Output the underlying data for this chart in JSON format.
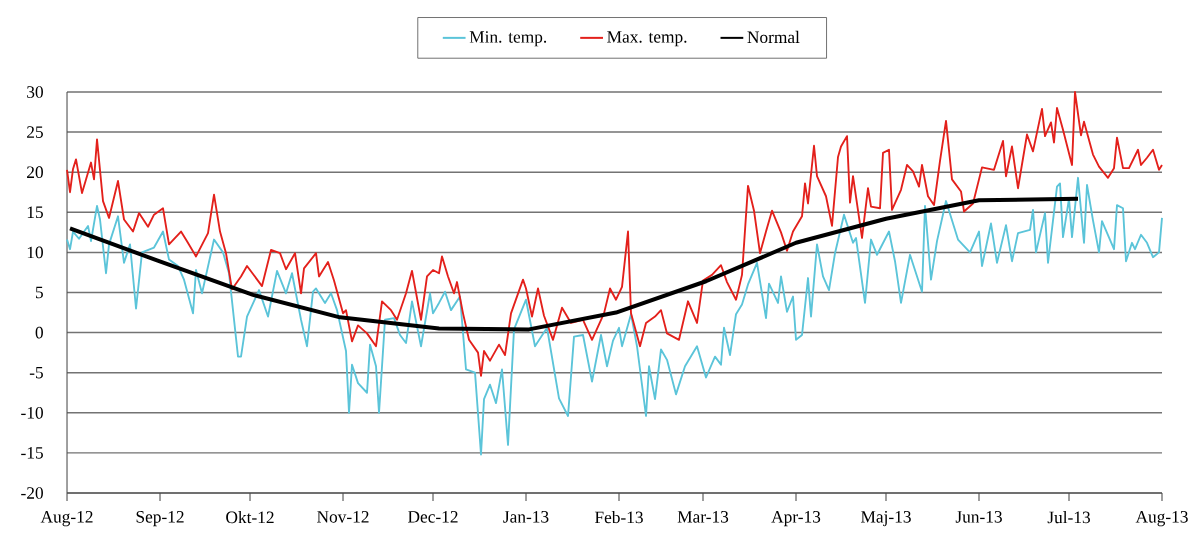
{
  "chart_data": {
    "type": "line",
    "xlim": [
      "2012-08-01",
      "2013-08-01"
    ],
    "xticks": [
      {
        "value": "2012-08-01",
        "label": "Aug-12"
      },
      {
        "value": "2012-09-01",
        "label": "Sep-12"
      },
      {
        "value": "2012-10-01",
        "label": "Okt-12"
      },
      {
        "value": "2012-11-01",
        "label": "Nov-12"
      },
      {
        "value": "2012-12-01",
        "label": "Dec-12"
      },
      {
        "value": "2013-01-01",
        "label": "Jan-13"
      },
      {
        "value": "2013-02-01",
        "label": "Feb-13"
      },
      {
        "value": "2013-03-01",
        "label": "Mar-13"
      },
      {
        "value": "2013-04-01",
        "label": "Apr-13"
      },
      {
        "value": "2013-05-01",
        "label": "Maj-13"
      },
      {
        "value": "2013-06-01",
        "label": "Jun-13"
      },
      {
        "value": "2013-07-01",
        "label": "Jul-13"
      },
      {
        "value": "2013-08-01",
        "label": "Aug-13"
      }
    ],
    "ylim": [
      -20,
      30
    ],
    "yticks": [
      -20,
      -15,
      -10,
      -5,
      0,
      5,
      10,
      15,
      20,
      25,
      30
    ],
    "grid": "y",
    "legend": "top",
    "series": [
      {
        "name": "Min. temp.",
        "color": "#5bc4d9",
        "x": [
          "2012-08-01",
          "2012-08-02",
          "2012-08-03",
          "2012-08-05",
          "2012-08-08",
          "2012-08-09",
          "2012-08-11",
          "2012-08-12",
          "2012-08-14",
          "2012-08-15",
          "2012-08-18",
          "2012-08-20",
          "2012-08-22",
          "2012-08-24",
          "2012-08-26",
          "2012-08-30",
          "2012-09-02",
          "2012-09-04",
          "2012-09-07",
          "2012-09-09",
          "2012-09-12",
          "2012-09-13",
          "2012-09-15",
          "2012-09-19",
          "2012-09-22",
          "2012-09-24",
          "2012-09-27",
          "2012-09-28",
          "2012-09-30",
          "2012-10-04",
          "2012-10-07",
          "2012-10-10",
          "2012-10-13",
          "2012-10-15",
          "2012-10-18",
          "2012-10-20",
          "2012-10-22",
          "2012-10-23",
          "2012-10-26",
          "2012-10-28",
          "2012-10-30",
          "2012-11-02",
          "2012-11-03",
          "2012-11-04",
          "2012-11-06",
          "2012-11-09",
          "2012-11-10",
          "2012-11-12",
          "2012-11-13",
          "2012-11-15",
          "2012-11-18",
          "2012-11-20",
          "2012-11-22",
          "2012-11-24",
          "2012-11-27",
          "2012-11-30",
          "2012-12-01",
          "2012-12-03",
          "2012-12-05",
          "2012-12-07",
          "2012-12-10",
          "2012-12-12",
          "2012-12-15",
          "2012-12-17",
          "2012-12-18",
          "2012-12-20",
          "2012-12-22",
          "2012-12-24",
          "2012-12-26",
          "2012-12-28",
          "2013-01-01",
          "2013-01-04",
          "2013-01-08",
          "2013-01-12",
          "2013-01-15",
          "2013-01-17",
          "2013-01-20",
          "2013-01-23",
          "2013-01-26",
          "2013-01-28",
          "2013-01-30",
          "2013-02-01",
          "2013-02-02",
          "2013-02-05",
          "2013-02-07",
          "2013-02-10",
          "2013-02-11",
          "2013-02-13",
          "2013-02-15",
          "2013-02-17",
          "2013-02-20",
          "2013-02-23",
          "2013-02-27",
          "2013-03-02",
          "2013-03-05",
          "2013-03-07",
          "2013-03-08",
          "2013-03-10",
          "2013-03-12",
          "2013-03-14",
          "2013-03-16",
          "2013-03-19",
          "2013-03-22",
          "2013-03-23",
          "2013-03-26",
          "2013-03-27",
          "2013-03-29",
          "2013-03-31",
          "2013-04-01",
          "2013-04-03",
          "2013-04-05",
          "2013-04-06",
          "2013-04-08",
          "2013-04-10",
          "2013-04-12",
          "2013-04-14",
          "2013-04-17",
          "2013-04-20",
          "2013-04-21",
          "2013-04-24",
          "2013-04-26",
          "2013-04-28",
          "2013-05-02",
          "2013-05-04",
          "2013-05-06",
          "2013-05-08",
          "2013-05-09",
          "2013-05-13",
          "2013-05-14",
          "2013-05-16",
          "2013-05-18",
          "2013-05-21",
          "2013-05-25",
          "2013-05-29",
          "2013-06-01",
          "2013-06-02",
          "2013-06-05",
          "2013-06-07",
          "2013-06-10",
          "2013-06-12",
          "2013-06-14",
          "2013-06-18",
          "2013-06-19",
          "2013-06-20",
          "2013-06-23",
          "2013-06-24",
          "2013-06-27",
          "2013-06-28",
          "2013-06-29",
          "2013-07-01",
          "2013-07-02",
          "2013-07-04",
          "2013-07-06",
          "2013-07-07",
          "2013-07-09",
          "2013-07-11",
          "2013-07-12",
          "2013-07-16",
          "2013-07-17",
          "2013-07-19",
          "2013-07-20",
          "2013-07-22",
          "2013-07-23",
          "2013-07-25",
          "2013-07-27",
          "2013-07-29",
          "2013-07-31",
          "2013-08-01"
        ],
        "values": [
          11.6,
          10.4,
          12.6,
          11.7,
          13.3,
          11.4,
          15.8,
          14.1,
          7.4,
          11.0,
          14.5,
          8.7,
          11.0,
          3.0,
          10.0,
          10.6,
          12.6,
          9.1,
          8.3,
          6.6,
          2.4,
          7.8,
          4.9,
          11.6,
          10.0,
          7.4,
          -3.0,
          -3.0,
          2.0,
          5.3,
          2.0,
          7.7,
          4.9,
          7.4,
          1.6,
          -1.7,
          5.1,
          5.5,
          3.7,
          4.9,
          2.8,
          -2.3,
          -10.0,
          -4.0,
          -6.3,
          -7.5,
          -1.5,
          -4.2,
          -10.0,
          1.6,
          1.8,
          -0.3,
          -1.3,
          3.9,
          -1.7,
          4.9,
          2.4,
          3.7,
          5.1,
          2.8,
          4.5,
          -4.6,
          -5.0,
          -15.2,
          -8.3,
          -6.5,
          -8.8,
          -4.6,
          -14.0,
          0.4,
          4.1,
          -1.7,
          0.6,
          -8.2,
          -10.4,
          -0.5,
          -0.3,
          -6.1,
          -0.3,
          -4.2,
          -1.0,
          0.6,
          -1.7,
          2.3,
          -1.7,
          -10.4,
          -4.2,
          -8.3,
          -2.1,
          -3.4,
          -7.7,
          -4.2,
          -1.7,
          -5.6,
          -3.0,
          -4.0,
          0.6,
          -2.8,
          2.3,
          3.5,
          6.0,
          8.7,
          1.8,
          6.1,
          3.7,
          7.0,
          2.6,
          4.5,
          -0.9,
          -0.3,
          6.8,
          2.0,
          11.0,
          7.0,
          5.3,
          9.9,
          14.7,
          11.2,
          11.8,
          3.7,
          11.6,
          9.7,
          12.6,
          8.9,
          3.7,
          7.7,
          9.7,
          5.1,
          15.8,
          6.6,
          11.4,
          16.4,
          11.6,
          10.0,
          12.6,
          8.3,
          13.6,
          8.7,
          13.4,
          8.9,
          12.4,
          12.8,
          15.3,
          10.0,
          14.9,
          8.7,
          18.2,
          18.6,
          11.9,
          16.7,
          11.9,
          19.3,
          11.2,
          18.4,
          14.0,
          10.0,
          13.9,
          10.4,
          15.9,
          15.5,
          8.9,
          11.2,
          10.4,
          12.2,
          11.2,
          9.4,
          10.0,
          14.3
        ]
      },
      {
        "name": "Max. temp.",
        "color": "#e3201b",
        "x": [
          "2012-08-01",
          "2012-08-02",
          "2012-08-03",
          "2012-08-04",
          "2012-08-06",
          "2012-08-09",
          "2012-08-10",
          "2012-08-11",
          "2012-08-13",
          "2012-08-15",
          "2012-08-18",
          "2012-08-20",
          "2012-08-23",
          "2012-08-25",
          "2012-08-28",
          "2012-08-30",
          "2012-09-02",
          "2012-09-04",
          "2012-09-08",
          "2012-09-10",
          "2012-09-13",
          "2012-09-17",
          "2012-09-19",
          "2012-09-21",
          "2012-09-23",
          "2012-09-25",
          "2012-09-28",
          "2012-09-30",
          "2012-10-05",
          "2012-10-08",
          "2012-10-11",
          "2012-10-13",
          "2012-10-16",
          "2012-10-18",
          "2012-10-19",
          "2012-10-23",
          "2012-10-24",
          "2012-10-27",
          "2012-10-29",
          "2012-11-01",
          "2012-11-02",
          "2012-11-04",
          "2012-11-06",
          "2012-11-09",
          "2012-11-12",
          "2012-11-14",
          "2012-11-17",
          "2012-11-19",
          "2012-11-22",
          "2012-11-24",
          "2012-11-27",
          "2012-11-29",
          "2012-12-01",
          "2012-12-03",
          "2012-12-04",
          "2012-12-06",
          "2012-12-08",
          "2012-12-09",
          "2012-12-11",
          "2012-12-13",
          "2012-12-16",
          "2012-12-17",
          "2012-12-18",
          "2012-12-20",
          "2012-12-23",
          "2012-12-25",
          "2012-12-27",
          "2012-12-31",
          "2013-01-01",
          "2013-01-03",
          "2013-01-05",
          "2013-01-07",
          "2013-01-10",
          "2013-01-13",
          "2013-01-16",
          "2013-01-20",
          "2013-01-23",
          "2013-01-27",
          "2013-01-29",
          "2013-01-31",
          "2013-02-02",
          "2013-02-04",
          "2013-02-05",
          "2013-02-08",
          "2013-02-10",
          "2013-02-13",
          "2013-02-15",
          "2013-02-17",
          "2013-02-21",
          "2013-02-24",
          "2013-02-27",
          "2013-03-01",
          "2013-03-04",
          "2013-03-07",
          "2013-03-09",
          "2013-03-12",
          "2013-03-14",
          "2013-03-16",
          "2013-03-18",
          "2013-03-20",
          "2013-03-22",
          "2013-03-24",
          "2013-03-27",
          "2013-03-29",
          "2013-03-31",
          "2013-04-03",
          "2013-04-04",
          "2013-04-05",
          "2013-04-07",
          "2013-04-08",
          "2013-04-11",
          "2013-04-13",
          "2013-04-15",
          "2013-04-16",
          "2013-04-18",
          "2013-04-19",
          "2013-04-20",
          "2013-04-23",
          "2013-04-25",
          "2013-04-26",
          "2013-04-29",
          "2013-04-30",
          "2013-05-02",
          "2013-05-03",
          "2013-05-06",
          "2013-05-08",
          "2013-05-10",
          "2013-05-12",
          "2013-05-13",
          "2013-05-15",
          "2013-05-17",
          "2013-05-19",
          "2013-05-21",
          "2013-05-23",
          "2013-05-26",
          "2013-05-27",
          "2013-05-30",
          "2013-06-02",
          "2013-06-06",
          "2013-06-09",
          "2013-06-10",
          "2013-06-12",
          "2013-06-14",
          "2013-06-17",
          "2013-06-19",
          "2013-06-22",
          "2013-06-23",
          "2013-06-25",
          "2013-06-26",
          "2013-06-27",
          "2013-06-29",
          "2013-07-02",
          "2013-07-03",
          "2013-07-05",
          "2013-07-06",
          "2013-07-09",
          "2013-07-11",
          "2013-07-14",
          "2013-07-16",
          "2013-07-17",
          "2013-07-19",
          "2013-07-21",
          "2013-07-24",
          "2013-07-25",
          "2013-07-27",
          "2013-07-29",
          "2013-07-31",
          "2013-08-01"
        ],
        "values": [
          20.3,
          17.5,
          20.4,
          21.6,
          17.4,
          21.2,
          19.1,
          24.1,
          16.4,
          14.3,
          18.9,
          14.1,
          12.6,
          14.9,
          13.2,
          14.7,
          15.5,
          11.0,
          12.6,
          11.4,
          9.5,
          12.4,
          17.2,
          12.6,
          9.9,
          5.4,
          7.0,
          8.3,
          5.8,
          10.3,
          9.9,
          7.9,
          9.9,
          4.9,
          8.0,
          9.9,
          7.0,
          8.8,
          6.5,
          2.4,
          2.8,
          -1.1,
          0.9,
          -0.1,
          -1.7,
          3.9,
          2.8,
          1.6,
          4.9,
          7.7,
          1.6,
          7.0,
          7.8,
          7.4,
          9.5,
          7.0,
          4.9,
          6.3,
          2.4,
          -0.9,
          -2.5,
          -5.4,
          -2.3,
          -3.5,
          -1.5,
          -2.8,
          2.4,
          6.6,
          5.5,
          2.0,
          5.5,
          2.1,
          -0.9,
          3.1,
          1.2,
          1.6,
          -0.9,
          2.4,
          5.5,
          4.1,
          5.7,
          12.6,
          2.4,
          -1.7,
          1.2,
          2.0,
          2.8,
          -0.1,
          -0.9,
          3.9,
          1.2,
          6.5,
          7.2,
          8.4,
          6.3,
          4.1,
          7.2,
          18.3,
          15.2,
          9.9,
          12.6,
          15.2,
          12.5,
          10.2,
          12.6,
          14.5,
          18.6,
          16.1,
          23.3,
          19.5,
          17.0,
          13.3,
          21.9,
          23.2,
          24.5,
          16.2,
          19.5,
          11.8,
          18.0,
          15.7,
          15.5,
          22.4,
          22.8,
          15.3,
          17.8,
          20.9,
          20.1,
          18.2,
          20.9,
          17.0,
          15.9,
          21.4,
          26.4,
          19.1,
          17.6,
          15.1,
          16.1,
          20.6,
          20.3,
          23.9,
          19.5,
          23.2,
          18.0,
          24.7,
          22.6,
          27.9,
          24.5,
          26.2,
          23.7,
          28.0,
          25.3,
          20.9,
          30.0,
          24.6,
          26.3,
          22.2,
          20.7,
          19.3,
          20.5,
          24.3,
          20.5,
          20.5,
          22.8,
          20.9,
          21.8,
          22.8,
          20.3,
          20.9
        ]
      },
      {
        "name": "Normal",
        "color": "#000000",
        "x": [
          "2012-08-02",
          "2012-08-31",
          "2012-10-02",
          "2012-10-31",
          "2012-12-03",
          "2013-01-02",
          "2013-01-31",
          "2013-03-02",
          "2013-04-01",
          "2013-05-01",
          "2013-06-01",
          "2013-07-04"
        ],
        "values": [
          13.0,
          9.0,
          4.7,
          1.9,
          0.5,
          0.4,
          2.5,
          6.4,
          11.2,
          14.2,
          16.5,
          16.7
        ]
      }
    ]
  }
}
